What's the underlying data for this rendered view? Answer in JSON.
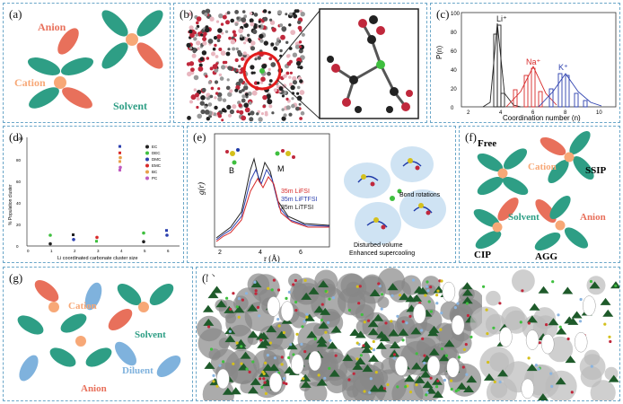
{
  "panels": {
    "a": {
      "label": "(a)",
      "anion": "Anion",
      "cation": "Cation",
      "solvent": "Solvent"
    },
    "b": {
      "label": "(b)"
    },
    "c": {
      "label": "(c)",
      "ylabel": "P(n)",
      "xlabel": "Coordination number (n)",
      "yticks": [
        "0",
        "20",
        "40",
        "60",
        "80",
        "100"
      ],
      "xticks": [
        "2",
        "4",
        "6",
        "8",
        "10"
      ],
      "ions": [
        "Li⁺",
        "Na⁺",
        "K⁺"
      ]
    },
    "d": {
      "label": "(d)",
      "ylabel": "% Population cluster",
      "xlabel": "Li coordinated carbonate cluster size",
      "legend": [
        "EC",
        "DEC",
        "DMC",
        "EMC",
        "BC",
        "PC"
      ],
      "yticks": [
        "0",
        "20",
        "40",
        "60",
        "80",
        "100"
      ],
      "xticks": [
        "0",
        "1",
        "2",
        "3",
        "4",
        "5",
        "6"
      ]
    },
    "e": {
      "label": "(e)",
      "ylabel": "g(r)",
      "xlabel": "r (Å)",
      "xticks": [
        "2",
        "4",
        "6"
      ],
      "legend": [
        "35m LiFSI",
        "35m LiFTFSI",
        "35m LiTFSI"
      ],
      "B": "B",
      "M": "M",
      "annot": [
        "Bond rotations",
        "Disturbed volume",
        "Enhanced supercooling"
      ]
    },
    "f": {
      "label": "(f)",
      "free": "Free",
      "cation": "Cation",
      "ssip": "SSIP",
      "solvent": "Solvent",
      "anion": "Anion",
      "cip": "CIP",
      "agg": "AGG"
    },
    "g": {
      "label": "(g)",
      "cation": "Cation",
      "solvent": "Solvent",
      "diluent": "Diluent",
      "anion": "Anion"
    },
    "h": {
      "label": "(h)"
    }
  },
  "colors": {
    "cation": "#f7a877",
    "anion": "#e8705b",
    "solvent": "#2e9e85",
    "diluent": "#7fb2dd",
    "border": "#6aa6c8"
  }
}
